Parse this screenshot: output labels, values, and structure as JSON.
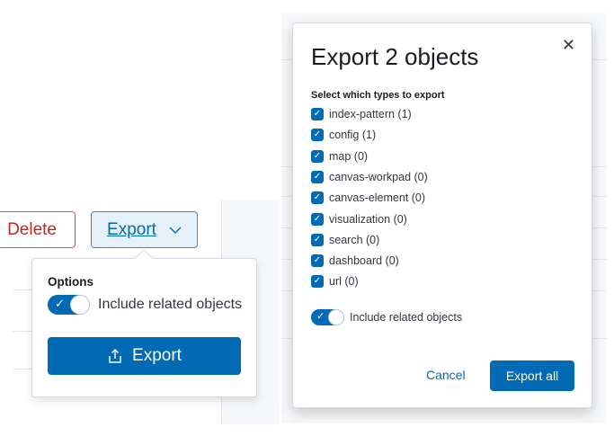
{
  "left": {
    "delete_label": "Delete",
    "export_label": "Export",
    "popover": {
      "options_label": "Options",
      "toggle_label": "Include related objects",
      "toggle_on": true,
      "export_button": "Export"
    }
  },
  "modal": {
    "title": "Export 2 objects",
    "types_label": "Select which types to export",
    "types": [
      {
        "label": "index-pattern (1)",
        "checked": true
      },
      {
        "label": "config (1)",
        "checked": true
      },
      {
        "label": "map (0)",
        "checked": true
      },
      {
        "label": "canvas-workpad (0)",
        "checked": true
      },
      {
        "label": "canvas-element (0)",
        "checked": true
      },
      {
        "label": "visualization (0)",
        "checked": true
      },
      {
        "label": "search (0)",
        "checked": true
      },
      {
        "label": "dashboard (0)",
        "checked": true
      },
      {
        "label": "url (0)",
        "checked": true
      }
    ],
    "toggle_label": "Include related objects",
    "toggle_on": true,
    "cancel_label": "Cancel",
    "export_all_label": "Export all"
  },
  "colors": {
    "primary": "#006bb4",
    "danger": "#bd271e"
  }
}
